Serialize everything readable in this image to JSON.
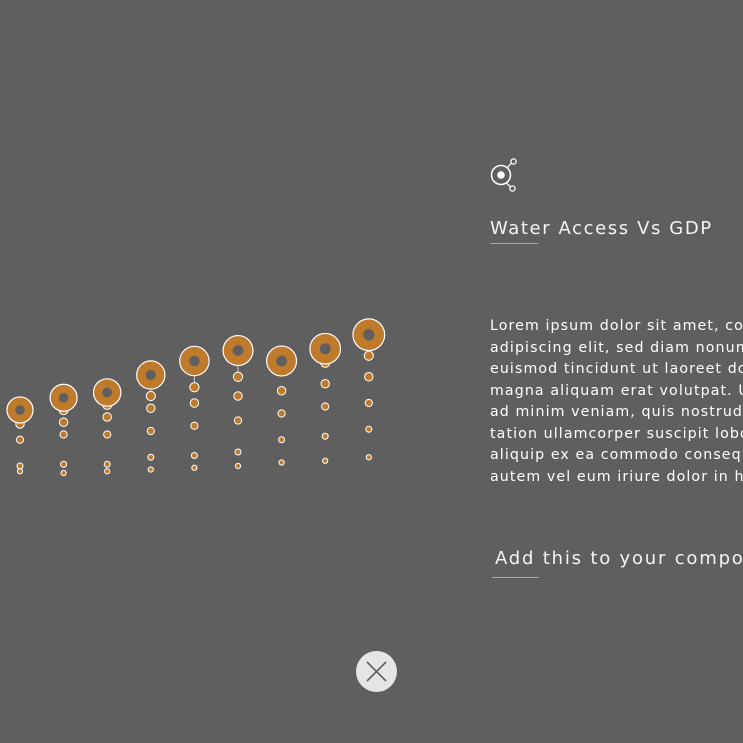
{
  "panel": {
    "title": "Water Access Vs GDP",
    "body": "Lorem ipsum dolor sit amet, consectetuer\nadipiscing elit, sed diam nonummy nibh\neuismod tincidunt ut laoreet dolore\nmagna aliquam erat volutpat. Ut wisi enim\nad minim veniam, quis nostrud exerci\ntation ullamcorper suscipit lobortis nisl ut\naliquip ex ea commodo consequat. Duis\nautem vel eum iriure dolor in hendrerit",
    "add_link": "Add this to your composition",
    "logo_icon": "node-network-icon"
  },
  "close_button": {
    "icon": "close-icon"
  },
  "colors": {
    "background": "#5f5f5f",
    "accent": "#c07a2c",
    "outline": "#ffffff",
    "stem": "#c8c8c8",
    "close_bg": "#e5e5e5",
    "close_x": "#5f5f5f"
  },
  "chart_data": {
    "type": "scatter",
    "columns": 9,
    "head_level": [
      0.2,
      0.27,
      0.3,
      0.4,
      0.48,
      0.54,
      0.48,
      0.55,
      0.63
    ],
    "head_size": [
      0.45,
      0.5,
      0.52,
      0.57,
      0.63,
      0.66,
      0.66,
      0.7,
      0.76
    ],
    "minor_points": [
      [
        0.17,
        0.12,
        0.03,
        -0.12,
        -0.15
      ],
      [
        0.2,
        0.13,
        0.06,
        -0.11,
        -0.16
      ],
      [
        0.23,
        0.16,
        0.06,
        -0.11,
        -0.15
      ],
      [
        0.28,
        0.21,
        0.08,
        -0.07,
        -0.14
      ],
      [
        0.33,
        0.24,
        0.11,
        -0.06,
        -0.13
      ],
      [
        0.39,
        0.28,
        0.14,
        -0.04,
        -0.12
      ],
      [
        0.42,
        0.31,
        0.18,
        0.03,
        -0.1
      ],
      [
        0.47,
        0.35,
        0.22,
        0.05,
        -0.09
      ],
      [
        0.51,
        0.39,
        0.24,
        0.09,
        -0.07
      ]
    ]
  }
}
